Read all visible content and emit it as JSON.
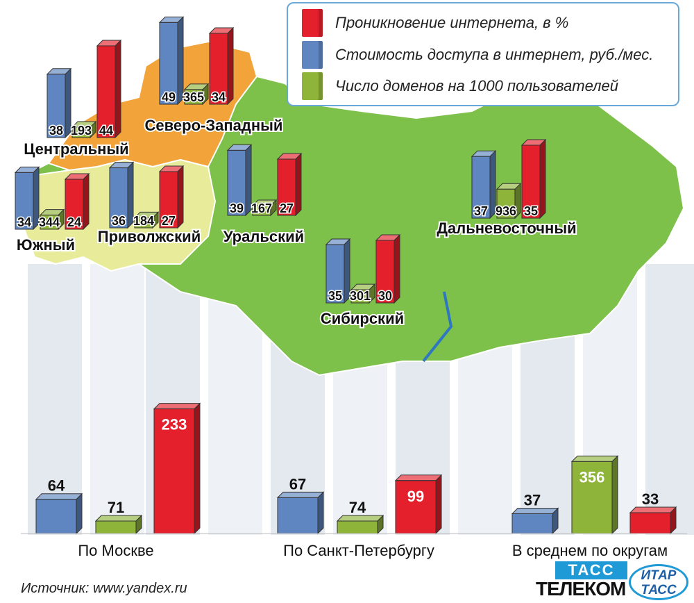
{
  "legend": [
    {
      "label": "Проникновение интернета, в %",
      "color": "#e3202b"
    },
    {
      "label": "Стоимость доступа в интернет, руб./мес.",
      "color": "#5f86c0"
    },
    {
      "label": "Число доменов на 1000 пользователей",
      "color": "#8fb43a"
    }
  ],
  "colors": {
    "penetration": "#e3202b",
    "cost": "#5f86c0",
    "domains": "#8fb43a",
    "map_green": "#7dc04a",
    "map_orange": "#f2a33a"
  },
  "chart_data": {
    "type": "bar",
    "series_keys": [
      "cost",
      "domains",
      "penetration"
    ],
    "regions": [
      {
        "name": "Центральный",
        "cost": 38,
        "domains": 193,
        "penetration": 44
      },
      {
        "name": "Северо-Западный",
        "cost": 49,
        "domains": 365,
        "penetration": 34
      },
      {
        "name": "Южный",
        "cost": 34,
        "domains": 344,
        "penetration": 24
      },
      {
        "name": "Приволжский",
        "cost": 36,
        "domains": 184,
        "penetration": 27
      },
      {
        "name": "Уральский",
        "cost": 39,
        "domains": 167,
        "penetration": 27
      },
      {
        "name": "Сибирский",
        "cost": 35,
        "domains": 301,
        "penetration": 30
      },
      {
        "name": "Дальневосточный",
        "cost": 37,
        "domains": 936,
        "penetration": 35
      }
    ],
    "summary": [
      {
        "name": "По Москве",
        "cost": 64,
        "domains": 71,
        "penetration": 233
      },
      {
        "name": "По Санкт-Петербургу",
        "cost": 67,
        "domains": 74,
        "penetration": 99
      },
      {
        "name": "В среднем по округам",
        "cost": 37,
        "domains": 356,
        "penetration": 33
      }
    ]
  },
  "source": "Источник: www.yandex.ru",
  "logos": {
    "tass_box": "ТАСС",
    "telecom": "ТЕЛЕКОМ",
    "itar_line1": "ИТАР",
    "itar_line2": "ТАСС"
  }
}
